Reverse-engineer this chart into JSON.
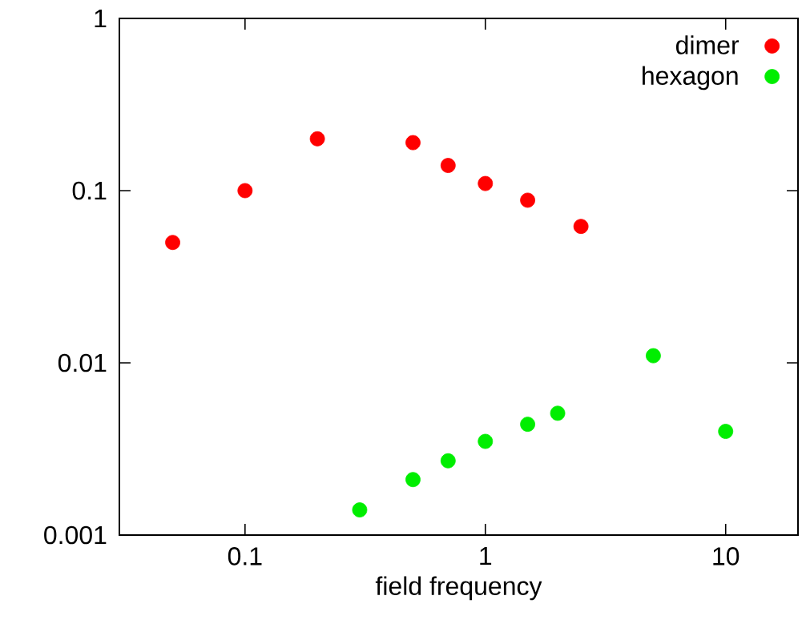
{
  "chart_data": {
    "type": "scatter",
    "xlabel": "field frequency",
    "log": "xy",
    "xlim": [
      0.03,
      20
    ],
    "ylim": [
      0.001,
      1
    ],
    "xticks": [
      0.1,
      1,
      10
    ],
    "yticks": [
      0.001,
      0.01,
      0.1,
      1
    ],
    "marker": "circle",
    "legend": "top right",
    "grid": false,
    "series": [
      {
        "name": "dimer",
        "color": "#ff0000",
        "x": [
          0.05,
          0.1,
          0.2,
          0.5,
          0.7,
          1,
          1.5,
          2.5
        ],
        "values": [
          0.05,
          0.1,
          0.2,
          0.19,
          0.14,
          0.11,
          0.088,
          0.062
        ]
      },
      {
        "name": "hexagon",
        "color": "#00ee00",
        "x": [
          0.3,
          0.5,
          0.7,
          1,
          1.5,
          2,
          5,
          10
        ],
        "values": [
          0.0014,
          0.0021,
          0.0027,
          0.0035,
          0.0044,
          0.0051,
          0.011,
          0.004
        ]
      }
    ]
  }
}
